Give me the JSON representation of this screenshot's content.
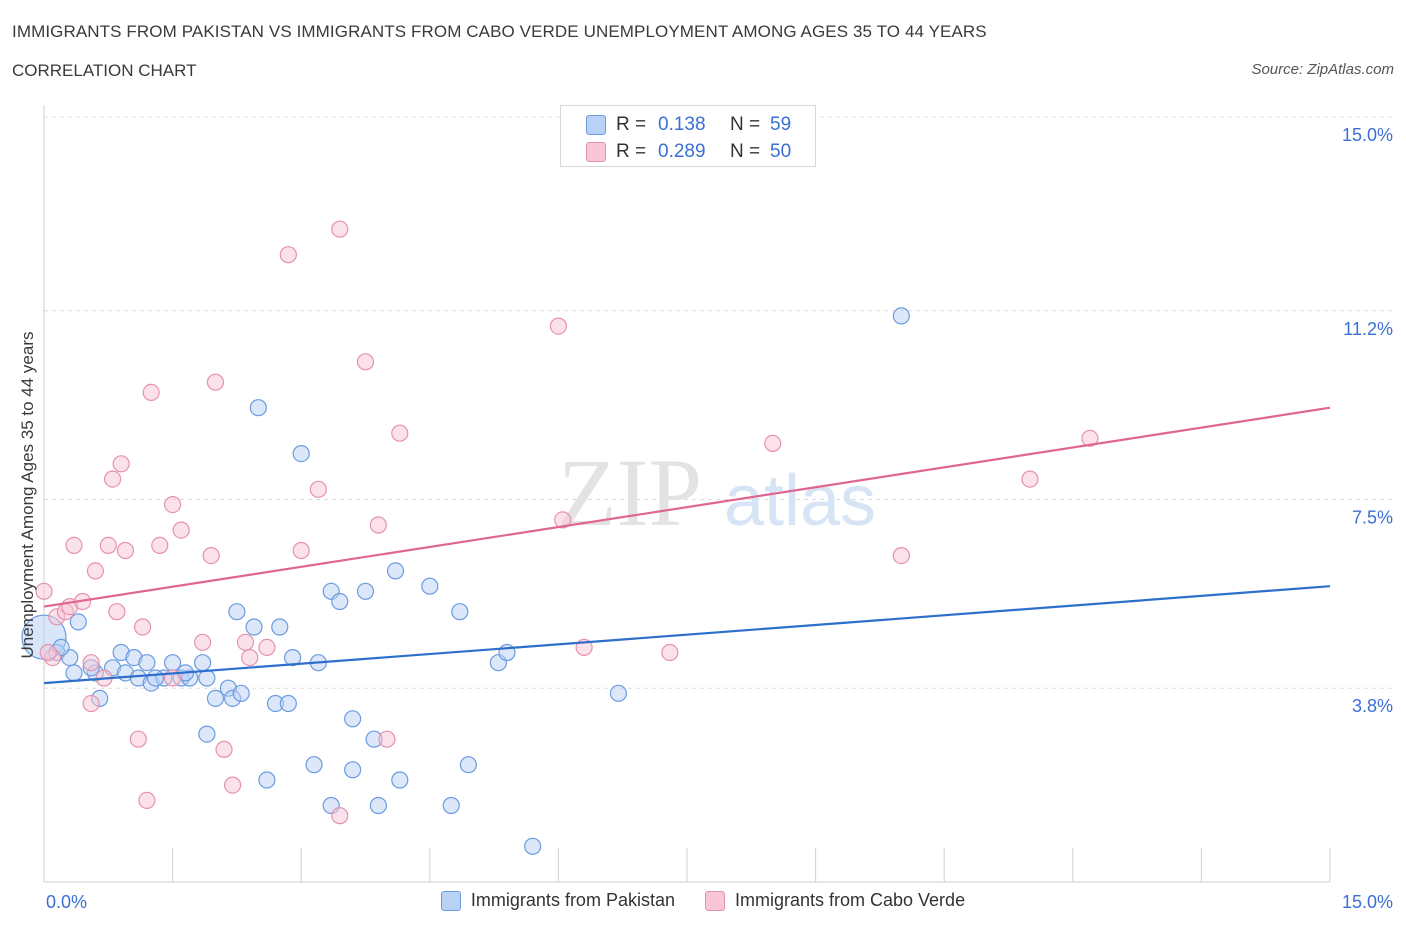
{
  "title": "IMMIGRANTS FROM PAKISTAN VS IMMIGRANTS FROM CABO VERDE UNEMPLOYMENT AMONG AGES 35 TO 44 YEARS",
  "subtitle": "CORRELATION CHART",
  "source": "Source: ZipAtlas.com",
  "watermark": {
    "zip": "ZIP",
    "atlas": "atlas"
  },
  "colors": {
    "pakistan_fill": "#b9d1f5",
    "pakistan_stroke": "#6a9be0",
    "pakistan_line": "#2f6fcc",
    "caboverde_fill": "#f8c6d6",
    "caboverde_stroke": "#e592ad",
    "caboverde_line": "#e0668f",
    "axis_label": "#3b6fd4",
    "grid": "#dcdcdc"
  },
  "legend_box": {
    "rows": [
      {
        "r_label": "R =",
        "r_value": "0.138",
        "n_label": "N =",
        "n_value": "59"
      },
      {
        "r_label": "R =",
        "r_value": "0.289",
        "n_label": "N =",
        "n_value": "50"
      }
    ]
  },
  "legend_bottom": {
    "pakistan": "Immigrants from Pakistan",
    "caboverde": "Immigrants from Cabo Verde"
  },
  "chart_data": {
    "type": "scatter",
    "ylabel": "Unemployment Among Ages 35 to 44 years",
    "xlim": [
      0,
      15
    ],
    "ylim": [
      0,
      15
    ],
    "x_tick_labels": {
      "0": "0.0%",
      "15": "15.0%"
    },
    "y_ticks": [
      3.8,
      7.5,
      11.2,
      15.0
    ],
    "y_tick_labels": [
      "3.8%",
      "7.5%",
      "11.2%",
      "15.0%"
    ],
    "grid": true,
    "legend_position": "top-center",
    "series": [
      {
        "name": "Immigrants from Pakistan",
        "trend": {
          "x0": 0,
          "y0": 3.9,
          "x1": 15,
          "y1": 5.8
        },
        "points": [
          [
            0.0,
            4.8
          ],
          [
            0.15,
            4.5
          ],
          [
            0.3,
            4.4
          ],
          [
            0.4,
            5.1
          ],
          [
            0.35,
            4.1
          ],
          [
            0.6,
            4.1
          ],
          [
            0.65,
            3.6
          ],
          [
            0.8,
            4.2
          ],
          [
            0.9,
            4.5
          ],
          [
            0.95,
            4.1
          ],
          [
            1.05,
            4.4
          ],
          [
            1.1,
            4.0
          ],
          [
            1.2,
            4.3
          ],
          [
            1.25,
            3.9
          ],
          [
            1.4,
            4.0
          ],
          [
            1.5,
            4.3
          ],
          [
            1.6,
            4.0
          ],
          [
            1.7,
            4.0
          ],
          [
            1.85,
            4.3
          ],
          [
            1.9,
            4.0
          ],
          [
            1.9,
            2.9
          ],
          [
            2.0,
            3.6
          ],
          [
            2.15,
            3.8
          ],
          [
            2.2,
            3.6
          ],
          [
            2.3,
            3.7
          ],
          [
            2.25,
            5.3
          ],
          [
            2.45,
            5.0
          ],
          [
            2.5,
            9.3
          ],
          [
            2.6,
            2.0
          ],
          [
            2.7,
            3.5
          ],
          [
            2.75,
            5.0
          ],
          [
            2.85,
            3.5
          ],
          [
            2.9,
            4.4
          ],
          [
            3.0,
            8.4
          ],
          [
            3.15,
            2.3
          ],
          [
            3.2,
            4.3
          ],
          [
            3.35,
            5.7
          ],
          [
            3.35,
            1.5
          ],
          [
            3.45,
            5.5
          ],
          [
            3.6,
            2.2
          ],
          [
            3.6,
            3.2
          ],
          [
            3.75,
            5.7
          ],
          [
            3.85,
            2.8
          ],
          [
            3.9,
            1.5
          ],
          [
            4.1,
            6.1
          ],
          [
            4.15,
            2.0
          ],
          [
            4.5,
            5.8
          ],
          [
            4.75,
            1.5
          ],
          [
            4.85,
            5.3
          ],
          [
            4.95,
            2.3
          ],
          [
            5.3,
            4.3
          ],
          [
            5.4,
            4.5
          ],
          [
            5.7,
            0.7
          ],
          [
            6.7,
            3.7
          ],
          [
            10.0,
            11.1
          ],
          [
            0.2,
            4.6
          ],
          [
            1.65,
            4.1
          ],
          [
            0.55,
            4.2
          ],
          [
            1.3,
            4.0
          ]
        ]
      },
      {
        "name": "Immigrants from Cabo Verde",
        "trend": {
          "x0": 0,
          "y0": 5.4,
          "x1": 15,
          "y1": 9.3
        },
        "points": [
          [
            0.0,
            5.7
          ],
          [
            0.1,
            4.4
          ],
          [
            0.15,
            5.2
          ],
          [
            0.25,
            5.3
          ],
          [
            0.3,
            5.4
          ],
          [
            0.35,
            6.6
          ],
          [
            0.45,
            5.5
          ],
          [
            0.55,
            4.3
          ],
          [
            0.6,
            6.1
          ],
          [
            0.55,
            3.5
          ],
          [
            0.7,
            4.0
          ],
          [
            0.75,
            6.6
          ],
          [
            0.85,
            5.3
          ],
          [
            0.8,
            7.9
          ],
          [
            0.9,
            8.2
          ],
          [
            0.95,
            6.5
          ],
          [
            1.1,
            2.8
          ],
          [
            1.15,
            5.0
          ],
          [
            1.2,
            1.6
          ],
          [
            1.25,
            9.6
          ],
          [
            1.35,
            6.6
          ],
          [
            1.5,
            4.0
          ],
          [
            1.5,
            7.4
          ],
          [
            1.6,
            6.9
          ],
          [
            1.85,
            4.7
          ],
          [
            1.95,
            6.4
          ],
          [
            2.0,
            9.8
          ],
          [
            2.1,
            2.6
          ],
          [
            2.2,
            1.9
          ],
          [
            2.35,
            4.7
          ],
          [
            2.4,
            4.4
          ],
          [
            2.6,
            4.6
          ],
          [
            2.85,
            12.3
          ],
          [
            3.0,
            6.5
          ],
          [
            3.2,
            7.7
          ],
          [
            3.45,
            12.8
          ],
          [
            3.45,
            1.3
          ],
          [
            3.75,
            10.2
          ],
          [
            3.9,
            7.0
          ],
          [
            4.0,
            2.8
          ],
          [
            4.15,
            8.8
          ],
          [
            6.0,
            10.9
          ],
          [
            6.05,
            7.1
          ],
          [
            6.3,
            4.6
          ],
          [
            7.3,
            4.5
          ],
          [
            8.5,
            8.6
          ],
          [
            10.0,
            6.4
          ],
          [
            11.5,
            7.9
          ],
          [
            12.2,
            8.7
          ],
          [
            0.05,
            4.5
          ]
        ]
      }
    ]
  }
}
